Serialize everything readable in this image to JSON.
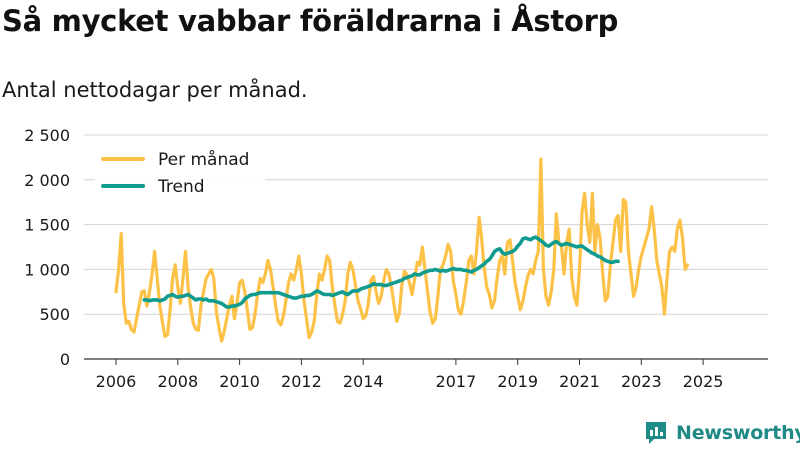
{
  "header": {
    "title": "Så mycket vabbar föräldrarna i Åstorp",
    "subtitle": "Antal nettodagar per månad."
  },
  "brand": {
    "name": "Newsworthy",
    "logo_icon": "bar-chart-icon",
    "color": "#1f8a86"
  },
  "colors": {
    "per_manad": "#fcc247",
    "trend": "#0f9b8e",
    "grid": "#d4d4d4",
    "axis": "#333333"
  },
  "chart_data": {
    "type": "line",
    "title": "Så mycket vabbar föräldrarna i Åstorp",
    "subtitle": "Antal nettodagar per månad.",
    "xlabel": "",
    "ylabel": "",
    "x_start": "2006-01",
    "x_tick_labels": [
      "2006",
      "2008",
      "2010",
      "2012",
      "2014",
      "2017",
      "2019",
      "2021",
      "2023",
      "2025"
    ],
    "y_tick_values": [
      0,
      500,
      1000,
      1500,
      2000,
      2500
    ],
    "y_tick_labels": [
      "0",
      "500",
      "1 000",
      "1 500",
      "2 000",
      "2 500"
    ],
    "ylim": [
      0,
      2500
    ],
    "grid": "horizontal",
    "legend_position": "top-left",
    "series": [
      {
        "name": "Per månad",
        "color": "#fcc247",
        "values": [
          750,
          1000,
          1400,
          620,
          400,
          420,
          330,
          300,
          450,
          600,
          750,
          760,
          590,
          750,
          950,
          1200,
          900,
          600,
          420,
          250,
          270,
          550,
          900,
          1050,
          800,
          620,
          900,
          1200,
          800,
          570,
          400,
          330,
          320,
          600,
          750,
          900,
          950,
          1000,
          900,
          520,
          350,
          200,
          300,
          450,
          600,
          700,
          450,
          620,
          850,
          880,
          750,
          550,
          330,
          350,
          500,
          720,
          900,
          850,
          950,
          1100,
          1000,
          800,
          600,
          420,
          380,
          480,
          650,
          850,
          950,
          880,
          1000,
          1150,
          950,
          650,
          450,
          240,
          300,
          430,
          720,
          950,
          880,
          1000,
          1150,
          1100,
          800,
          600,
          420,
          400,
          500,
          650,
          950,
          1080,
          1000,
          820,
          650,
          560,
          450,
          480,
          620,
          880,
          920,
          750,
          620,
          700,
          880,
          1000,
          950,
          800,
          600,
          420,
          500,
          820,
          980,
          940,
          850,
          720,
          900,
          1080,
          1050,
          1250,
          1000,
          750,
          520,
          400,
          450,
          700,
          1000,
          1050,
          1150,
          1280,
          1200,
          870,
          720,
          540,
          500,
          650,
          850,
          1100,
          1150,
          950,
          1200,
          1580,
          1350,
          1020,
          800,
          720,
          570,
          650,
          900,
          1100,
          1150,
          950,
          1300,
          1330,
          1100,
          850,
          700,
          550,
          640,
          800,
          930,
          1000,
          950,
          1100,
          1200,
          2230,
          1000,
          700,
          600,
          750,
          1000,
          1620,
          1300,
          1250,
          950,
          1300,
          1450,
          900,
          700,
          600,
          1000,
          1650,
          1850,
          1500,
          1300,
          1850,
          1200,
          1500,
          1350,
          950,
          650,
          700,
          1050,
          1300,
          1550,
          1600,
          1200,
          1780,
          1750,
          1200,
          950,
          700,
          800,
          1000,
          1150,
          1250,
          1350,
          1450,
          1700,
          1450,
          1100,
          950,
          800,
          500,
          900,
          1200,
          1250,
          1200,
          1450,
          1550,
          1350,
          1000,
          1050
        ]
      },
      {
        "name": "Trend",
        "color": "#0f9b8e",
        "offset": 11,
        "values": [
          660,
          660,
          650,
          660,
          660,
          660,
          650,
          660,
          670,
          700,
          710,
          720,
          700,
          690,
          700,
          700,
          710,
          720,
          700,
          680,
          660,
          670,
          670,
          660,
          670,
          650,
          650,
          650,
          640,
          630,
          620,
          600,
          580,
          580,
          590,
          590,
          600,
          610,
          630,
          670,
          690,
          710,
          720,
          720,
          730,
          740,
          740,
          740,
          740,
          740,
          740,
          740,
          740,
          730,
          720,
          710,
          700,
          690,
          680,
          680,
          690,
          700,
          700,
          710,
          710,
          720,
          740,
          760,
          750,
          730,
          720,
          720,
          720,
          710,
          720,
          730,
          740,
          750,
          730,
          720,
          740,
          760,
          760,
          760,
          780,
          790,
          800,
          810,
          820,
          840,
          830,
          830,
          830,
          820,
          820,
          830,
          840,
          850,
          860,
          870,
          880,
          900,
          910,
          920,
          930,
          950,
          940,
          940,
          960,
          970,
          980,
          990,
          990,
          1000,
          990,
          980,
          990,
          980,
          990,
          1000,
          1010,
          1000,
          1000,
          1000,
          990,
          990,
          980,
          970,
          990,
          1000,
          1020,
          1040,
          1060,
          1090,
          1110,
          1150,
          1200,
          1220,
          1230,
          1190,
          1170,
          1180,
          1190,
          1200,
          1220,
          1260,
          1290,
          1340,
          1350,
          1340,
          1330,
          1350,
          1360,
          1340,
          1320,
          1300,
          1270,
          1260,
          1280,
          1300,
          1310,
          1290,
          1270,
          1280,
          1290,
          1280,
          1270,
          1260,
          1250,
          1260,
          1260,
          1240,
          1220,
          1200,
          1180,
          1170,
          1150,
          1140,
          1120,
          1100,
          1090,
          1080,
          1080,
          1090,
          1090
        ]
      }
    ]
  }
}
